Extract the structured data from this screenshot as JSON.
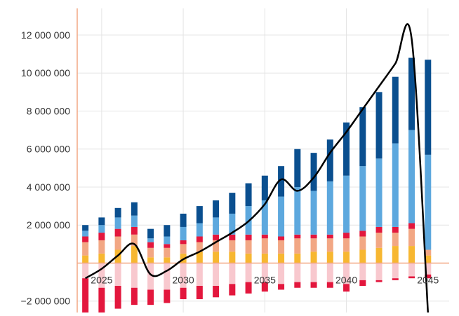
{
  "chart_data": {
    "type": "bar",
    "stacked": true,
    "title": "",
    "xlabel": "",
    "ylabel": "",
    "x": [
      2024,
      2025,
      2026,
      2027,
      2028,
      2029,
      2030,
      2031,
      2032,
      2033,
      2034,
      2035,
      2036,
      2037,
      2038,
      2039,
      2040,
      2041,
      2042,
      2043,
      2044,
      2045
    ],
    "xlim": [
      2023.5,
      2046.3
    ],
    "ylim": [
      -2600000,
      13400000
    ],
    "y_ticks": [
      -2000000,
      2000000,
      4000000,
      6000000,
      8000000,
      10000000,
      12000000
    ],
    "y_tick_labels": [
      "−2 000 000",
      "2 000 000",
      "4 000 000",
      "6 000 000",
      "8 000 000",
      "10 000 000",
      "12 000 000"
    ],
    "x_ticks": [
      2025,
      2030,
      2035,
      2040,
      2045
    ],
    "x_tick_labels": [
      "2025",
      "2030",
      "2035",
      "2040",
      "2045"
    ],
    "grid": true,
    "series": [
      {
        "color": "#f8c8ce",
        "values": [
          -800000,
          -1300000,
          -1200000,
          -1300000,
          -1400000,
          -1400000,
          -1300000,
          -1200000,
          -1200000,
          -1100000,
          -1000000,
          -1000000,
          -1100000,
          -1000000,
          -1000000,
          -1000000,
          -1100000,
          -900000,
          -900000,
          -800000,
          -700000,
          -600000
        ]
      },
      {
        "color": "#e3173d",
        "values": [
          -2000000,
          -1300000,
          -1200000,
          -900000,
          -800000,
          -700000,
          -600000,
          -700000,
          -600000,
          -600000,
          -600000,
          -500000,
          -300000,
          -300000,
          -300000,
          -300000,
          -400000,
          -300000,
          -100000,
          -100000,
          -100000,
          -200000
        ]
      },
      {
        "color": "#f7b731",
        "values": [
          400000,
          500000,
          700000,
          900000,
          300000,
          300000,
          500000,
          600000,
          600000,
          600000,
          500000,
          500000,
          500000,
          500000,
          600000,
          600000,
          600000,
          700000,
          800000,
          900000,
          900000,
          400000
        ]
      },
      {
        "color": "#f2a784",
        "values": [
          700000,
          700000,
          700000,
          600000,
          500000,
          500000,
          500000,
          500000,
          600000,
          600000,
          700000,
          800000,
          700000,
          800000,
          700000,
          700000,
          700000,
          700000,
          800000,
          700000,
          900000,
          300000
        ]
      },
      {
        "color": "#e3173d",
        "values": [
          300000,
          400000,
          400000,
          400000,
          300000,
          200000,
          200000,
          300000,
          300000,
          300000,
          300000,
          200000,
          200000,
          200000,
          200000,
          200000,
          300000,
          300000,
          300000,
          300000,
          300000,
          0
        ]
      },
      {
        "color": "#5da8de",
        "values": [
          300000,
          400000,
          600000,
          600000,
          200000,
          400000,
          700000,
          700000,
          900000,
          1100000,
          1500000,
          1800000,
          2100000,
          2500000,
          2300000,
          2800000,
          3000000,
          3400000,
          3600000,
          4400000,
          4900000,
          5000000
        ]
      },
      {
        "color": "#0a4f8f",
        "values": [
          300000,
          400000,
          500000,
          700000,
          500000,
          600000,
          700000,
          900000,
          900000,
          1100000,
          1200000,
          1300000,
          1600000,
          2000000,
          2000000,
          2200000,
          2800000,
          3100000,
          3500000,
          3500000,
          3800000,
          5000000
        ]
      }
    ],
    "line": {
      "color": "#000000",
      "values": [
        -800000,
        -300000,
        400000,
        1000000,
        -600000,
        -400000,
        200000,
        600000,
        1100000,
        1600000,
        2200000,
        3100000,
        4400000,
        3800000,
        4500000,
        5800000,
        6900000,
        8100000,
        9300000,
        10500000,
        11800000,
        -2600000
      ]
    }
  }
}
